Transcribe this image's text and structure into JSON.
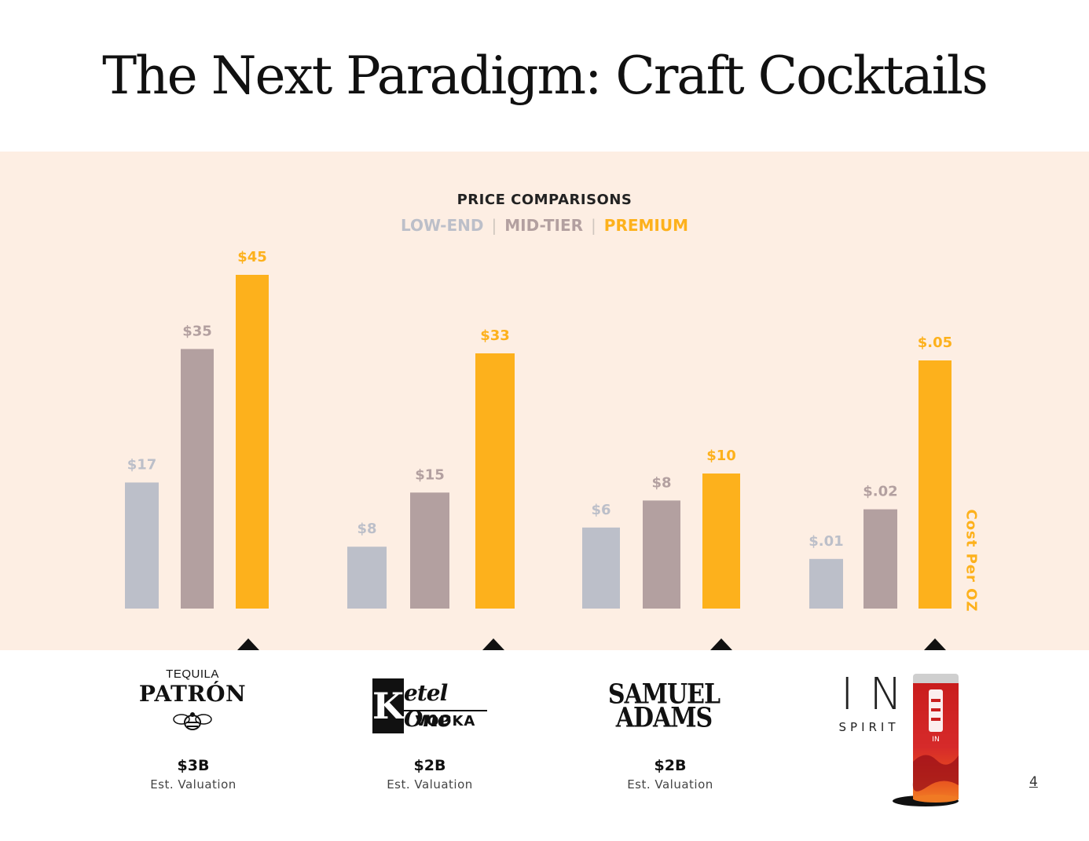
{
  "slide": {
    "title": "The Next Paradigm: Craft Cocktails",
    "page_number": "4"
  },
  "colors": {
    "background_band": "#fdeee3",
    "low_end": "#bcbfc9",
    "mid_tier": "#b3a0a0",
    "premium": "#fdb11c",
    "pointer": "#111111"
  },
  "chart_data": {
    "type": "bar",
    "title": "PRICE COMPARISONS",
    "ylabel": "Cost Per OZ",
    "legend": [
      "LOW-END",
      "MID-TIER",
      "PREMIUM"
    ],
    "legend_placement": "top-center",
    "grid": false,
    "categories": [
      "Patrón",
      "Ketel One",
      "Samuel Adams",
      "IN Spirit"
    ],
    "series": [
      {
        "name": "LOW-END",
        "values": [
          17,
          8,
          6,
          0.01
        ],
        "labels": [
          "$17",
          "$8",
          "$6",
          "$.01"
        ]
      },
      {
        "name": "MID-TIER",
        "values": [
          35,
          15,
          8,
          0.02
        ],
        "labels": [
          "$35",
          "$15",
          "$8",
          "$.02"
        ]
      },
      {
        "name": "PREMIUM",
        "values": [
          45,
          33,
          10,
          0.05
        ],
        "labels": [
          "$45",
          "$33",
          "$10",
          "$.05"
        ]
      }
    ]
  },
  "brands": [
    {
      "logo_top": "TEQUILA",
      "logo_main": "PATRÓN",
      "icon": "bee-icon",
      "valuation": "$3B",
      "valuation_label": "Est. Valuation"
    },
    {
      "logo_k": "K",
      "logo_top": "etel One",
      "logo_bottom": "VODKA",
      "valuation": "$2B",
      "valuation_label": "Est. Valuation"
    },
    {
      "logo_line1": "SAMUEL",
      "logo_line2": "ADAMS",
      "valuation": "$2B",
      "valuation_label": "Est. Valuation"
    },
    {
      "logo_main": "IN",
      "logo_sub": "SPIRIT",
      "can_text": "IN",
      "icon": "can-icon"
    }
  ]
}
